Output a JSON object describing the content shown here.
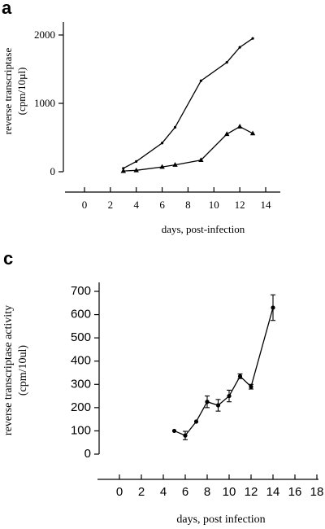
{
  "panels": [
    {
      "letter": "a",
      "chart_data": {
        "type": "line",
        "title": "",
        "xlabel": "days, post-infection",
        "ylabel": [
          "reverse transcriptase",
          "(cpm/10µl)"
        ],
        "xlim": [
          0,
          14
        ],
        "ylim": [
          0,
          2000
        ],
        "x_ticks": [
          0,
          2,
          4,
          6,
          8,
          10,
          12,
          14
        ],
        "y_ticks": [
          0,
          1000,
          2000
        ],
        "grid": false,
        "series": [
          {
            "marker": "dot",
            "x": [
              3,
              4,
              6,
              7,
              9,
              11,
              12,
              13
            ],
            "y": [
              50,
              150,
              420,
              650,
              1330,
              1600,
              1820,
              1950
            ]
          },
          {
            "marker": "triangle",
            "x": [
              3,
              4,
              6,
              7,
              9,
              11,
              12,
              13
            ],
            "y": [
              10,
              20,
              70,
              100,
              170,
              550,
              660,
              560
            ]
          }
        ]
      }
    },
    {
      "letter": "c",
      "chart_data": {
        "type": "line",
        "title": "",
        "xlabel": "days, post infection",
        "ylabel": [
          "reverse transcriptase activity",
          "(cpm/10ul)"
        ],
        "xlim": [
          0,
          18
        ],
        "ylim": [
          0,
          700
        ],
        "x_ticks": [
          0,
          2,
          4,
          6,
          8,
          10,
          12,
          14,
          16,
          18
        ],
        "y_ticks": [
          0,
          100,
          200,
          300,
          400,
          500,
          600,
          700
        ],
        "y_tick_labels": [
          "0",
          "100",
          "200",
          "300",
          "400",
          "500",
          "600",
          "700"
        ],
        "grid": false,
        "series": [
          {
            "marker": "dot",
            "x": [
              5,
              6,
              7,
              8,
              9,
              10,
              11,
              12,
              14
            ],
            "y": [
              100,
              80,
              140,
              225,
              210,
              250,
              335,
              290,
              630
            ],
            "error": [
              0,
              18,
              0,
              25,
              25,
              25,
              10,
              10,
              55
            ]
          }
        ]
      }
    }
  ]
}
